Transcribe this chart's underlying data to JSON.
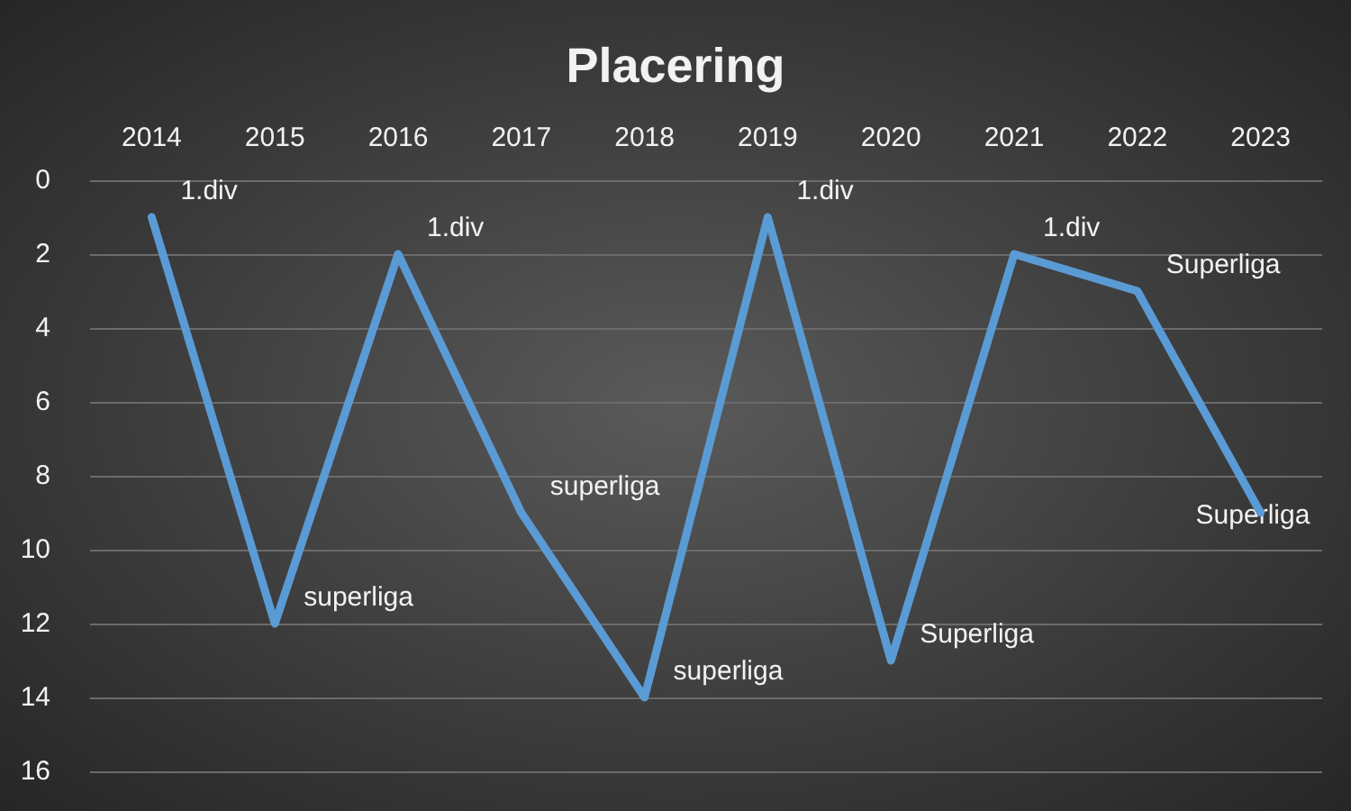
{
  "chart_data": {
    "type": "line",
    "title": "Placering",
    "categories": [
      "2014",
      "2015",
      "2016",
      "2017",
      "2018",
      "2019",
      "2020",
      "2021",
      "2022",
      "2023"
    ],
    "series": [
      {
        "color": "#5b9bd5",
        "values": [
          1,
          12,
          2,
          9,
          14,
          1,
          13,
          2,
          3,
          9
        ]
      }
    ],
    "annotations": [
      {
        "text": "1.div",
        "x": "2014",
        "y": 1
      },
      {
        "text": "superliga",
        "x": "2015",
        "y": 12
      },
      {
        "text": "1.div",
        "x": "2016",
        "y": 2
      },
      {
        "text": "superliga",
        "x": "2017",
        "y": 9
      },
      {
        "text": "superliga",
        "x": "2018",
        "y": 14
      },
      {
        "text": "1.div",
        "x": "2019",
        "y": 1
      },
      {
        "text": "Superliga",
        "x": "2020",
        "y": 13
      },
      {
        "text": "1.div",
        "x": "2021",
        "y": 2
      },
      {
        "text": "Superliga",
        "x": "2022",
        "y": 3
      },
      {
        "text": "Superliga",
        "x": "2023",
        "y": 9
      }
    ],
    "ylim": [
      16,
      0
    ],
    "yticks": [
      0,
      2,
      4,
      6,
      8,
      10,
      12,
      14,
      16
    ],
    "grid": "y",
    "marker": "none",
    "line_style": "solid"
  }
}
